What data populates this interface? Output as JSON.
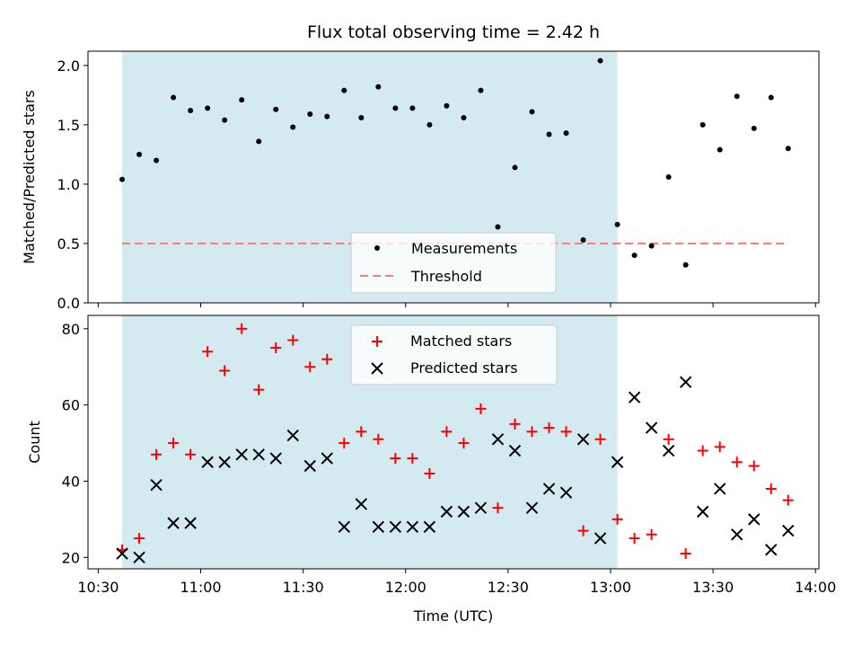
{
  "chart_data": [
    {
      "type": "scatter",
      "title": "Flux total observing time = 2.42 h",
      "ylabel": "Matched/Predicted stars",
      "xlim": [
        "10:27",
        "14:01"
      ],
      "ylim": [
        0,
        2.12
      ],
      "yticks": [
        "0.0",
        "0.5",
        "1.0",
        "1.5",
        "2.0"
      ],
      "shaded_span": [
        "10:37",
        "13:02"
      ],
      "shaded_color": "#d3eaf0",
      "legend_position": "lower-center",
      "series": [
        {
          "name": "Measurements",
          "marker": "dot",
          "color": "#000000",
          "x": [
            "10:37",
            "10:42",
            "10:47",
            "10:52",
            "10:57",
            "11:02",
            "11:07",
            "11:12",
            "11:17",
            "11:22",
            "11:27",
            "11:32",
            "11:37",
            "11:42",
            "11:47",
            "11:52",
            "11:57",
            "12:02",
            "12:07",
            "12:12",
            "12:17",
            "12:22",
            "12:27",
            "12:32",
            "12:37",
            "12:42",
            "12:47",
            "12:52",
            "12:57",
            "13:02",
            "13:07",
            "13:12",
            "13:17",
            "13:22",
            "13:27",
            "13:32",
            "13:37",
            "13:42",
            "13:47",
            "13:52"
          ],
          "y": [
            1.04,
            1.25,
            1.2,
            1.73,
            1.62,
            1.64,
            1.54,
            1.71,
            1.36,
            1.63,
            1.48,
            1.59,
            1.57,
            1.79,
            1.56,
            1.82,
            1.64,
            1.64,
            1.5,
            1.66,
            1.56,
            1.79,
            0.64,
            1.14,
            1.61,
            1.42,
            1.43,
            0.53,
            2.04,
            0.66,
            0.4,
            0.48,
            1.06,
            0.32,
            1.5,
            1.29,
            1.74,
            1.47,
            1.73,
            1.3
          ]
        }
      ],
      "threshold": {
        "name": "Threshold",
        "value": 0.5,
        "x_range": [
          "10:37",
          "13:52"
        ],
        "color": "#ff7a7a",
        "style": "dashed"
      }
    },
    {
      "type": "scatter",
      "xlabel": "Time (UTC)",
      "ylabel": "Count",
      "xlim": [
        "10:27",
        "14:01"
      ],
      "ylim": [
        17,
        83.5
      ],
      "yticks": [
        "20",
        "40",
        "60",
        "80"
      ],
      "xticks": [
        "10:30",
        "11:00",
        "11:30",
        "12:00",
        "12:30",
        "13:00",
        "13:30",
        "14:00"
      ],
      "shaded_span": [
        "10:37",
        "13:02"
      ],
      "shaded_color": "#d3eaf0",
      "legend_position": "top-center",
      "series": [
        {
          "name": "Matched stars",
          "marker": "plus",
          "color": "#ff0000",
          "x": [
            "10:37",
            "10:42",
            "10:47",
            "10:52",
            "10:57",
            "11:02",
            "11:07",
            "11:12",
            "11:17",
            "11:22",
            "11:27",
            "11:32",
            "11:37",
            "11:42",
            "11:47",
            "11:52",
            "11:57",
            "12:02",
            "12:07",
            "12:12",
            "12:17",
            "12:22",
            "12:27",
            "12:32",
            "12:37",
            "12:42",
            "12:47",
            "12:52",
            "12:57",
            "13:02",
            "13:07",
            "13:12",
            "13:17",
            "13:22",
            "13:27",
            "13:32",
            "13:37",
            "13:42",
            "13:47",
            "13:52"
          ],
          "y": [
            22,
            25,
            47,
            50,
            47,
            74,
            69,
            80,
            64,
            75,
            77,
            70,
            72,
            50,
            53,
            51,
            46,
            46,
            42,
            53,
            50,
            59,
            33,
            55,
            53,
            54,
            53,
            27,
            51,
            30,
            25,
            26,
            51,
            21,
            48,
            49,
            45,
            44,
            38,
            35
          ]
        },
        {
          "name": "Predicted stars",
          "marker": "x",
          "color": "#000000",
          "x": [
            "10:37",
            "10:42",
            "10:47",
            "10:52",
            "10:57",
            "11:02",
            "11:07",
            "11:12",
            "11:17",
            "11:22",
            "11:27",
            "11:32",
            "11:37",
            "11:42",
            "11:47",
            "11:52",
            "11:57",
            "12:02",
            "12:07",
            "12:12",
            "12:17",
            "12:22",
            "12:27",
            "12:32",
            "12:37",
            "12:42",
            "12:47",
            "12:52",
            "12:57",
            "13:02",
            "13:07",
            "13:12",
            "13:17",
            "13:22",
            "13:27",
            "13:32",
            "13:37",
            "13:42",
            "13:47",
            "13:52"
          ],
          "y": [
            21,
            20,
            39,
            29,
            29,
            45,
            45,
            47,
            47,
            46,
            52,
            44,
            46,
            28,
            34,
            28,
            28,
            28,
            28,
            32,
            32,
            33,
            51,
            48,
            33,
            38,
            37,
            51,
            25,
            45,
            62,
            54,
            48,
            66,
            32,
            38,
            26,
            30,
            22,
            27
          ]
        }
      ]
    }
  ]
}
